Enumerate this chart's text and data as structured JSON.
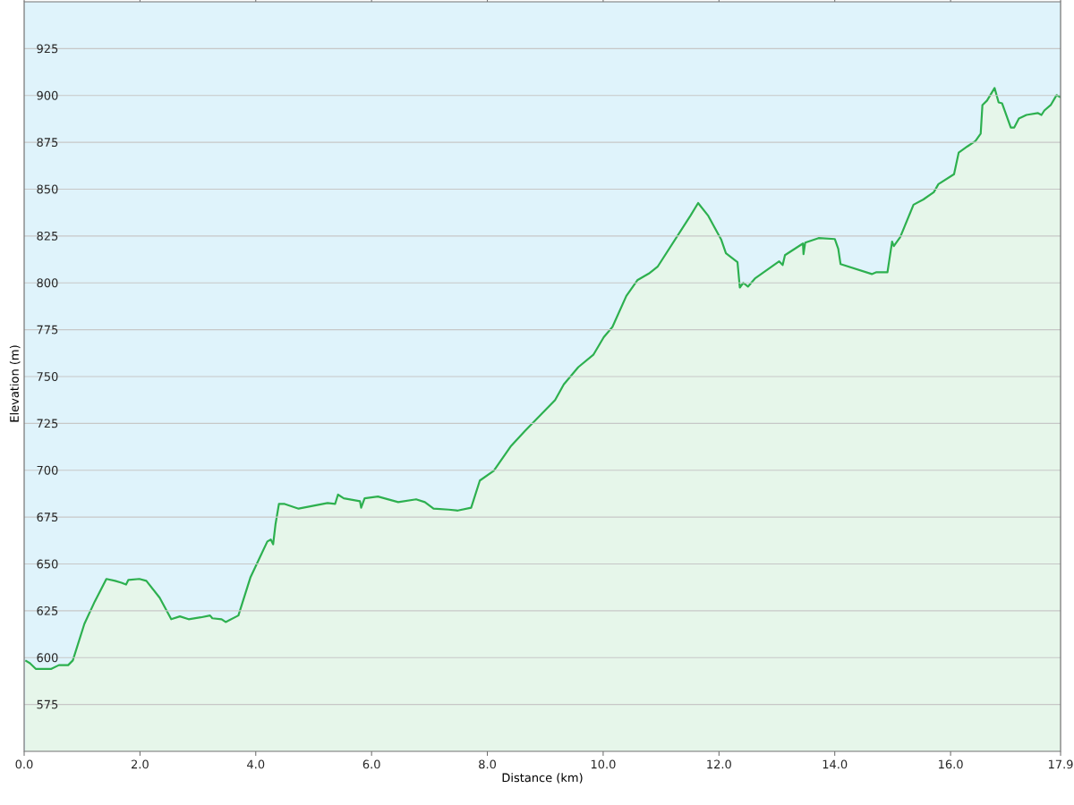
{
  "chart_data": {
    "type": "area",
    "xlabel": "Distance (km)",
    "ylabel": "Elevation (m)",
    "color": "#2db04f",
    "grid": "y",
    "xlim": [
      0,
      17.9
    ],
    "ylim": [
      550,
      950
    ],
    "xticks": [
      {
        "value": 0,
        "label": "0.0"
      },
      {
        "value": 2,
        "label": "2.0"
      },
      {
        "value": 4,
        "label": "4.0"
      },
      {
        "value": 6,
        "label": "6.0"
      },
      {
        "value": 8,
        "label": "8.0"
      },
      {
        "value": 10,
        "label": "10.0"
      },
      {
        "value": 12,
        "label": "12.0"
      },
      {
        "value": 14,
        "label": "14.0"
      },
      {
        "value": 16,
        "label": "16.0"
      },
      {
        "value": 17.9,
        "label": "17.9"
      }
    ],
    "yticks": [
      575,
      600,
      625,
      650,
      675,
      700,
      725,
      750,
      775,
      800,
      825,
      850,
      875,
      900,
      925
    ],
    "x": [
      0.02,
      0.1,
      0.2,
      0.47,
      0.6,
      0.76,
      0.84,
      1.04,
      1.22,
      1.42,
      1.57,
      1.68,
      1.76,
      1.8,
      1.99,
      2.11,
      2.34,
      2.54,
      2.69,
      2.84,
      3.05,
      3.21,
      3.25,
      3.41,
      3.48,
      3.7,
      3.91,
      4.07,
      4.2,
      4.26,
      4.3,
      4.34,
      4.4,
      4.5,
      4.74,
      4.98,
      5.24,
      5.37,
      5.42,
      5.52,
      5.8,
      5.82,
      5.88,
      6.11,
      6.46,
      6.77,
      6.92,
      7.07,
      7.33,
      7.49,
      7.72,
      7.87,
      8.11,
      8.4,
      8.65,
      9.17,
      9.32,
      9.57,
      9.83,
      10.01,
      10.16,
      10.4,
      10.59,
      10.79,
      10.94,
      11.51,
      11.64,
      11.81,
      12.04,
      12.12,
      12.32,
      12.36,
      12.42,
      12.5,
      12.62,
      13.04,
      13.1,
      13.14,
      13.45,
      13.46,
      13.49,
      13.72,
      14.0,
      14.06,
      14.1,
      14.64,
      14.72,
      14.91,
      14.99,
      15.02,
      15.13,
      15.36,
      15.53,
      15.71,
      15.79,
      16.06,
      16.14,
      16.29,
      16.43,
      16.52,
      16.55,
      16.63,
      16.76,
      16.83,
      16.89,
      17.04,
      17.1,
      17.18,
      17.31,
      17.51,
      17.57,
      17.62,
      17.73,
      17.83,
      17.9
    ],
    "values": [
      598.5,
      597,
      594,
      594,
      596,
      596,
      598.5,
      618,
      630,
      642,
      641,
      640,
      639,
      641.5,
      642,
      641,
      632,
      620.5,
      622,
      620.5,
      621.5,
      622.5,
      621,
      620.5,
      619,
      622.5,
      643,
      653.5,
      662,
      663,
      660.5,
      671,
      682,
      682,
      679.5,
      681,
      682.5,
      682,
      687,
      685,
      683.5,
      680,
      685,
      686,
      683,
      684.5,
      683,
      679.5,
      679,
      678.5,
      680,
      694.5,
      699.7,
      712.6,
      721,
      737.5,
      745.8,
      755,
      761.6,
      771,
      776.5,
      793,
      801.4,
      805,
      808.6,
      836,
      842.6,
      836,
      823,
      815.8,
      811,
      797.5,
      800,
      798,
      802.3,
      811.5,
      809.5,
      814.8,
      821,
      815.3,
      821.5,
      823.9,
      823.4,
      818.2,
      810,
      804.7,
      805.7,
      805.7,
      822,
      819.6,
      824.4,
      841.7,
      844.5,
      848.4,
      852.7,
      858,
      869.5,
      872.8,
      875.7,
      879.6,
      894.9,
      897.3,
      904,
      896.3,
      895.8,
      882.9,
      882.9,
      887.7,
      889.6,
      890.6,
      889.6,
      892,
      894.9,
      900.2,
      899
    ]
  }
}
